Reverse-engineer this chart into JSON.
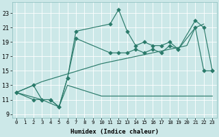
{
  "xlabel": "Humidex (Indice chaleur)",
  "background_color": "#cce8e8",
  "line_color": "#2a7a6a",
  "xlim": [
    -0.5,
    23.5
  ],
  "ylim": [
    8.5,
    24.5
  ],
  "xticks": [
    0,
    1,
    2,
    3,
    4,
    5,
    6,
    7,
    8,
    9,
    10,
    11,
    12,
    13,
    14,
    15,
    16,
    17,
    18,
    19,
    20,
    21,
    22,
    23
  ],
  "yticks": [
    9,
    11,
    13,
    15,
    17,
    19,
    21,
    23
  ],
  "line1_x": [
    0,
    2,
    3,
    4,
    5,
    6,
    7,
    11,
    12,
    13,
    14,
    15,
    16,
    17,
    18,
    19,
    21,
    22,
    23
  ],
  "line1_y": [
    12,
    13,
    11,
    11,
    10,
    14,
    20.5,
    21.5,
    23.5,
    20.5,
    18.5,
    19,
    18.5,
    18.5,
    19,
    18,
    22,
    21,
    15
  ],
  "line2_x": [
    0,
    2,
    3,
    4,
    5,
    6,
    7,
    11,
    12,
    13,
    14,
    15,
    16,
    17,
    18,
    19,
    21,
    22,
    23
  ],
  "line2_y": [
    12,
    11,
    11,
    11,
    10,
    14,
    19.5,
    17.5,
    17.5,
    17.5,
    18,
    17.5,
    18,
    17.5,
    18.5,
    18,
    21,
    15,
    15
  ],
  "line3_x": [
    0,
    3,
    5,
    6,
    10,
    12,
    14,
    17,
    19,
    20,
    22,
    23
  ],
  "line3_y": [
    12,
    11,
    10,
    13,
    11.5,
    11.5,
    11.5,
    11.5,
    11.5,
    11.5,
    11.5,
    11.5
  ],
  "line4_x": [
    0,
    3,
    10,
    20,
    21,
    22
  ],
  "line4_y": [
    12,
    13.5,
    16,
    18.5,
    21,
    21.5
  ]
}
